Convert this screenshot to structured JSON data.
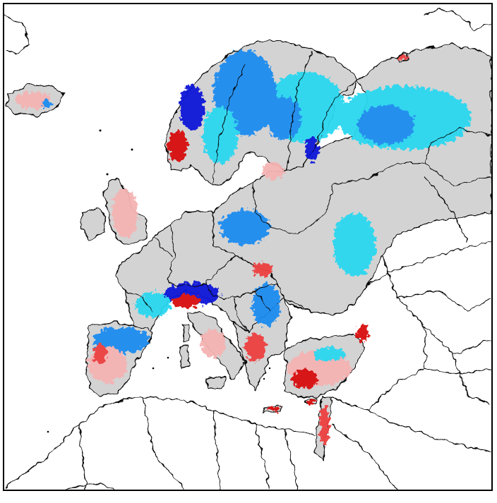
{
  "map": {
    "region": "Europe",
    "colors": {
      "land": "#d3d3d3",
      "water": "#ffffff",
      "border": "#000000",
      "strong_decrease": "#0a12d8",
      "decrease": "#1e8cf0",
      "slight_decrease": "#2ad8f0",
      "slight_increase": "#f5b3b3",
      "increase": "#ee4040",
      "strong_increase": "#d80a0a"
    }
  }
}
